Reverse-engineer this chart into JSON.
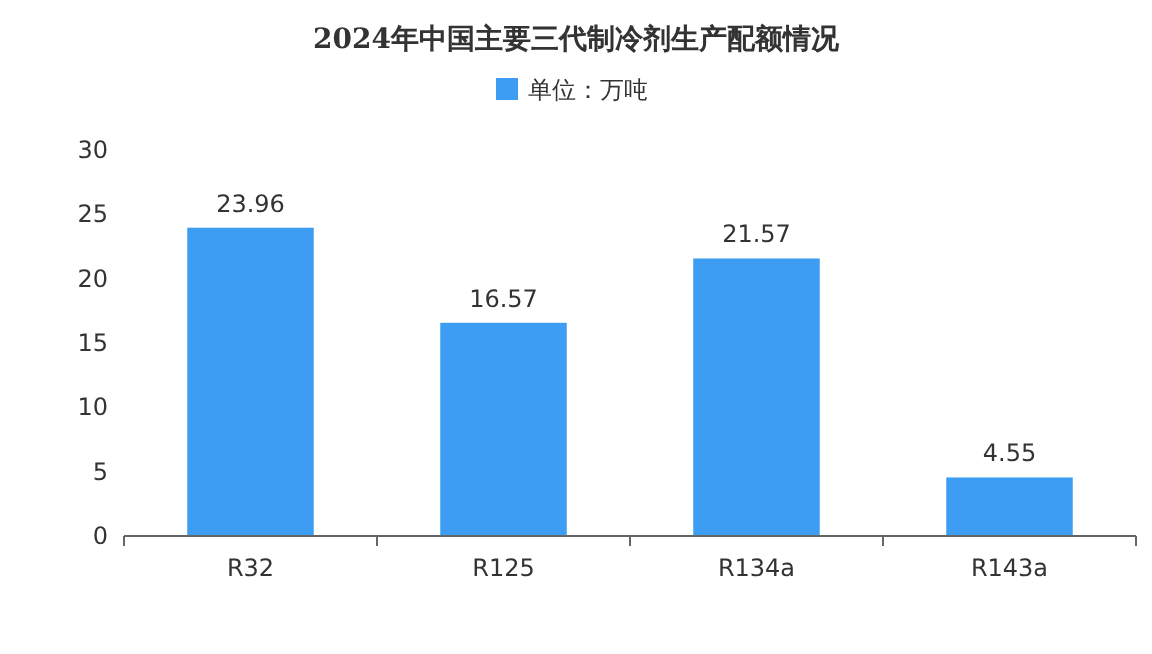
{
  "chart_data": {
    "type": "bar",
    "title": "2024年中国主要三代制冷剂生产配额情况",
    "categories": [
      "R32",
      "R125",
      "R134a",
      "R143a"
    ],
    "series": [
      {
        "name": "单位：万吨",
        "color": "#3d9df3",
        "values": [
          23.96,
          16.57,
          21.57,
          4.55
        ]
      }
    ],
    "ylim": [
      0,
      30
    ],
    "yticks": [
      0,
      5,
      10,
      15,
      20,
      25,
      30
    ],
    "data_labels": true,
    "legend": "top",
    "grid": false
  }
}
